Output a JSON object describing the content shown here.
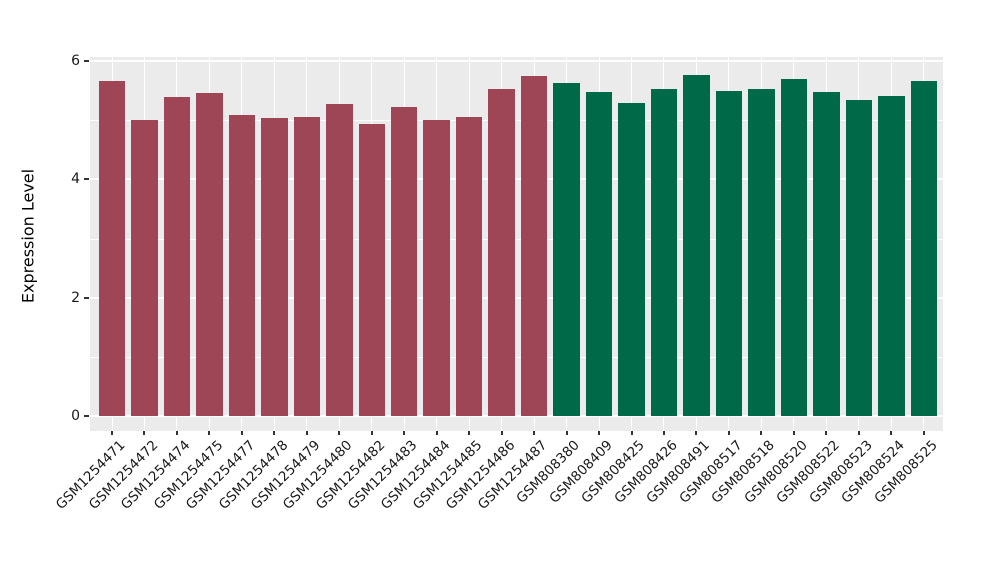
{
  "chart_data": {
    "type": "bar",
    "title": "",
    "xlabel": "",
    "ylabel": "Expression Level",
    "ylim": [
      0,
      6.07
    ],
    "yticks": [
      {
        "label": "0",
        "value": 0
      },
      {
        "label": "2",
        "value": 2
      },
      {
        "label": "4",
        "value": 4
      },
      {
        "label": "6",
        "value": 6
      }
    ],
    "minor_gridlines": [
      1,
      3,
      5
    ],
    "major_gridlines": [
      0,
      2,
      4,
      6
    ],
    "grid_on": true,
    "legend": "none",
    "plot_background": "#EBEBEB",
    "grid_color": "#FFFFFF",
    "group_colors": {
      "group1": "#9E4655",
      "group2": "#006A48"
    },
    "bars": [
      {
        "label": "GSM1254471",
        "value": 5.66,
        "group": "group1"
      },
      {
        "label": "GSM1254472",
        "value": 5.0,
        "group": "group1"
      },
      {
        "label": "GSM1254474",
        "value": 5.39,
        "group": "group1"
      },
      {
        "label": "GSM1254475",
        "value": 5.46,
        "group": "group1"
      },
      {
        "label": "GSM1254477",
        "value": 5.09,
        "group": "group1"
      },
      {
        "label": "GSM1254478",
        "value": 5.04,
        "group": "group1"
      },
      {
        "label": "GSM1254479",
        "value": 5.06,
        "group": "group1"
      },
      {
        "label": "GSM1254480",
        "value": 5.28,
        "group": "group1"
      },
      {
        "label": "GSM1254482",
        "value": 4.94,
        "group": "group1"
      },
      {
        "label": "GSM1254483",
        "value": 5.22,
        "group": "group1"
      },
      {
        "label": "GSM1254484",
        "value": 5.01,
        "group": "group1"
      },
      {
        "label": "GSM1254485",
        "value": 5.06,
        "group": "group1"
      },
      {
        "label": "GSM1254486",
        "value": 5.52,
        "group": "group1"
      },
      {
        "label": "GSM1254487",
        "value": 5.74,
        "group": "group1"
      },
      {
        "label": "GSM808380",
        "value": 5.63,
        "group": "group2"
      },
      {
        "label": "GSM808409",
        "value": 5.48,
        "group": "group2"
      },
      {
        "label": "GSM808425",
        "value": 5.29,
        "group": "group2"
      },
      {
        "label": "GSM808426",
        "value": 5.52,
        "group": "group2"
      },
      {
        "label": "GSM808491",
        "value": 5.76,
        "group": "group2"
      },
      {
        "label": "GSM808517",
        "value": 5.49,
        "group": "group2"
      },
      {
        "label": "GSM808518",
        "value": 5.53,
        "group": "group2"
      },
      {
        "label": "GSM808520",
        "value": 5.7,
        "group": "group2"
      },
      {
        "label": "GSM808522",
        "value": 5.47,
        "group": "group2"
      },
      {
        "label": "GSM808523",
        "value": 5.34,
        "group": "group2"
      },
      {
        "label": "GSM808524",
        "value": 5.41,
        "group": "group2"
      },
      {
        "label": "GSM808525",
        "value": 5.67,
        "group": "group2"
      }
    ]
  }
}
